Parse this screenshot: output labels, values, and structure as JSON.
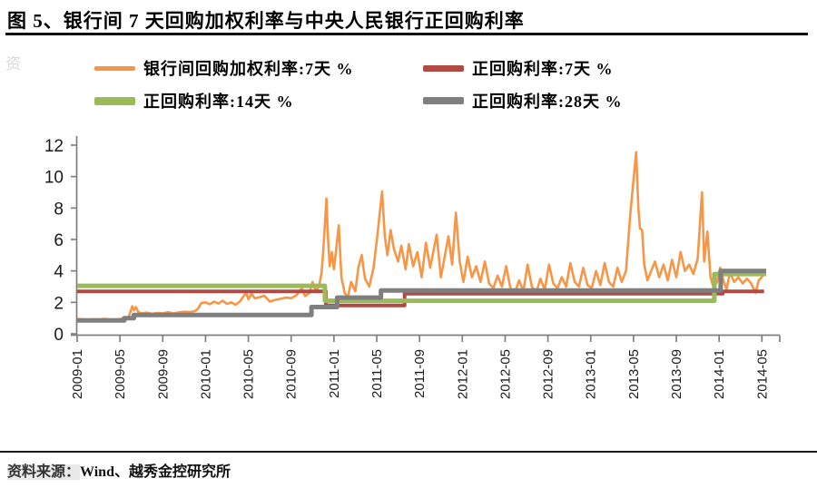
{
  "header": {
    "title": "图 5、银行间 7 天回购加权利率与中央人民银行正回购利率"
  },
  "watermark": {
    "char": "资"
  },
  "footer": {
    "label": "资料来源：",
    "text": "Wind、越秀金控研究所"
  },
  "chart_data": {
    "type": "line",
    "title": "",
    "xlabel": "",
    "ylabel": "",
    "grid": false,
    "legend_position": "top",
    "ylim": [
      0,
      12
    ],
    "yticks": [
      0,
      2,
      4,
      6,
      8,
      10,
      12
    ],
    "x_unit": "months since 2009-01",
    "xlim": [
      0,
      65.5
    ],
    "xticks": [
      {
        "m": 0,
        "label": "2009-01"
      },
      {
        "m": 4,
        "label": "2009-05"
      },
      {
        "m": 8,
        "label": "2009-09"
      },
      {
        "m": 12,
        "label": "2010-01"
      },
      {
        "m": 16,
        "label": "2010-05"
      },
      {
        "m": 20,
        "label": "2010-09"
      },
      {
        "m": 24,
        "label": "2011-01"
      },
      {
        "m": 28,
        "label": "2011-05"
      },
      {
        "m": 32,
        "label": "2011-09"
      },
      {
        "m": 36,
        "label": "2012-01"
      },
      {
        "m": 40,
        "label": "2012-05"
      },
      {
        "m": 44,
        "label": "2012-09"
      },
      {
        "m": 48,
        "label": "2013-01"
      },
      {
        "m": 52,
        "label": "2013-05"
      },
      {
        "m": 56,
        "label": "2013-09"
      },
      {
        "m": 60,
        "label": "2014-01"
      },
      {
        "m": 64,
        "label": "2014-05"
      }
    ],
    "series": [
      {
        "name": "银行间回购加权利率:7天  %",
        "color": "#F79646",
        "width": 2.6,
        "swatch_h": 5,
        "points": [
          [
            0,
            0.95
          ],
          [
            0.5,
            0.92
          ],
          [
            1,
            0.9
          ],
          [
            1.5,
            0.93
          ],
          [
            2,
            0.91
          ],
          [
            2.5,
            0.95
          ],
          [
            3,
            0.92
          ],
          [
            3.5,
            0.9
          ],
          [
            4,
            0.94
          ],
          [
            4.4,
            0.98
          ],
          [
            4.8,
            1.05
          ],
          [
            5,
            1.45
          ],
          [
            5.15,
            1.75
          ],
          [
            5.3,
            1.5
          ],
          [
            5.5,
            1.7
          ],
          [
            5.7,
            1.4
          ],
          [
            6,
            1.3
          ],
          [
            6.5,
            1.35
          ],
          [
            7,
            1.27
          ],
          [
            7.5,
            1.33
          ],
          [
            8,
            1.3
          ],
          [
            8.5,
            1.38
          ],
          [
            9,
            1.3
          ],
          [
            9.5,
            1.36
          ],
          [
            10,
            1.4
          ],
          [
            10.5,
            1.38
          ],
          [
            11,
            1.44
          ],
          [
            11.3,
            1.6
          ],
          [
            11.6,
            1.95
          ],
          [
            12,
            2.0
          ],
          [
            12.4,
            1.88
          ],
          [
            12.8,
            2.05
          ],
          [
            13.2,
            1.92
          ],
          [
            13.6,
            2.1
          ],
          [
            14,
            1.9
          ],
          [
            14.4,
            2.0
          ],
          [
            14.8,
            1.85
          ],
          [
            15.2,
            2.05
          ],
          [
            15.5,
            2.35
          ],
          [
            15.8,
            2.6
          ],
          [
            16,
            2.2
          ],
          [
            16.3,
            2.55
          ],
          [
            16.6,
            2.25
          ],
          [
            17,
            2.32
          ],
          [
            17.5,
            2.42
          ],
          [
            18,
            2.05
          ],
          [
            18.5,
            2.15
          ],
          [
            19,
            2.22
          ],
          [
            19.5,
            2.3
          ],
          [
            20,
            2.26
          ],
          [
            20.5,
            2.45
          ],
          [
            21,
            2.9
          ],
          [
            21.3,
            2.4
          ],
          [
            21.7,
            2.6
          ],
          [
            22,
            3.3
          ],
          [
            22.3,
            2.7
          ],
          [
            22.6,
            3.0
          ],
          [
            22.85,
            3.9
          ],
          [
            23.05,
            5.8
          ],
          [
            23.3,
            8.6
          ],
          [
            23.45,
            6.0
          ],
          [
            23.6,
            4.3
          ],
          [
            23.8,
            5.2
          ],
          [
            24,
            4.1
          ],
          [
            24.2,
            5.3
          ],
          [
            24.45,
            6.9
          ],
          [
            24.7,
            3.6
          ],
          [
            25,
            2.6
          ],
          [
            25.3,
            2.3
          ],
          [
            25.6,
            3.3
          ],
          [
            26,
            2.7
          ],
          [
            26.3,
            4.3
          ],
          [
            26.6,
            5.0
          ],
          [
            26.9,
            3.5
          ],
          [
            27.3,
            3.0
          ],
          [
            27.7,
            4.2
          ],
          [
            28.05,
            6.2
          ],
          [
            28.25,
            7.5
          ],
          [
            28.5,
            9.05
          ],
          [
            28.75,
            6.2
          ],
          [
            29,
            5.0
          ],
          [
            29.3,
            6.6
          ],
          [
            29.6,
            5.4
          ],
          [
            30,
            4.6
          ],
          [
            30.3,
            5.6
          ],
          [
            30.7,
            4.1
          ],
          [
            31,
            5.7
          ],
          [
            31.4,
            4.3
          ],
          [
            31.8,
            5.2
          ],
          [
            32.2,
            3.6
          ],
          [
            32.6,
            5.8
          ],
          [
            33,
            4.2
          ],
          [
            33.6,
            6.3
          ],
          [
            34,
            3.6
          ],
          [
            34.7,
            6.2
          ],
          [
            35.05,
            4.4
          ],
          [
            35.4,
            7.7
          ],
          [
            35.75,
            4.6
          ],
          [
            36.1,
            3.3
          ],
          [
            36.5,
            4.9
          ],
          [
            36.9,
            3.6
          ],
          [
            37.3,
            4.3
          ],
          [
            37.7,
            3.3
          ],
          [
            38.1,
            4.6
          ],
          [
            38.5,
            3.2
          ],
          [
            38.9,
            2.9
          ],
          [
            39.3,
            3.7
          ],
          [
            39.7,
            3.0
          ],
          [
            40.1,
            4.3
          ],
          [
            40.5,
            2.9
          ],
          [
            40.9,
            2.6
          ],
          [
            41.3,
            3.4
          ],
          [
            41.7,
            2.7
          ],
          [
            42.1,
            4.4
          ],
          [
            42.5,
            3.0
          ],
          [
            42.9,
            2.6
          ],
          [
            43.3,
            3.5
          ],
          [
            43.7,
            2.8
          ],
          [
            44.1,
            4.4
          ],
          [
            44.5,
            3.2
          ],
          [
            44.9,
            2.9
          ],
          [
            45.3,
            3.6
          ],
          [
            45.7,
            3.0
          ],
          [
            46.1,
            4.5
          ],
          [
            46.5,
            3.3
          ],
          [
            46.9,
            3.0
          ],
          [
            47.3,
            4.2
          ],
          [
            47.7,
            3.1
          ],
          [
            48.1,
            2.9
          ],
          [
            48.5,
            4.0
          ],
          [
            48.9,
            3.1
          ],
          [
            49.3,
            4.5
          ],
          [
            49.7,
            3.3
          ],
          [
            50.1,
            3.0
          ],
          [
            50.5,
            4.2
          ],
          [
            50.9,
            3.3
          ],
          [
            51.3,
            4.0
          ],
          [
            51.7,
            7.6
          ],
          [
            52,
            9.8
          ],
          [
            52.25,
            11.55
          ],
          [
            52.45,
            8.0
          ],
          [
            52.6,
            6.7
          ],
          [
            52.8,
            6.6
          ],
          [
            53,
            4.4
          ],
          [
            53.3,
            3.4
          ],
          [
            53.6,
            3.9
          ],
          [
            54,
            4.6
          ],
          [
            54.4,
            3.6
          ],
          [
            54.8,
            4.4
          ],
          [
            55.2,
            3.4
          ],
          [
            55.6,
            4.7
          ],
          [
            56,
            3.6
          ],
          [
            56.4,
            5.2
          ],
          [
            56.8,
            4.0
          ],
          [
            57.2,
            4.4
          ],
          [
            57.6,
            3.8
          ],
          [
            58,
            4.8
          ],
          [
            58.4,
            9.0
          ],
          [
            58.6,
            4.6
          ],
          [
            58.9,
            6.5
          ],
          [
            59.2,
            3.6
          ],
          [
            59.5,
            2.9
          ],
          [
            59.8,
            3.3
          ],
          [
            60.1,
            4.2
          ],
          [
            60.4,
            3.4
          ],
          [
            60.7,
            2.8
          ],
          [
            61,
            3.9
          ],
          [
            61.4,
            3.3
          ],
          [
            61.8,
            3.6
          ],
          [
            62.2,
            3.2
          ],
          [
            62.6,
            3.5
          ],
          [
            63,
            3.2
          ],
          [
            63.4,
            2.6
          ],
          [
            63.7,
            3.4
          ],
          [
            64,
            3.6
          ],
          [
            64.3,
            4.1
          ]
        ]
      },
      {
        "name": "正回购利率:7天  %",
        "color": "#B04A42",
        "width": 4,
        "swatch_h": 7,
        "points": [
          [
            0,
            2.7
          ],
          [
            23.25,
            2.7
          ],
          [
            23.25,
            1.8
          ],
          [
            30.6,
            1.8
          ],
          [
            30.6,
            2.55
          ],
          [
            60.35,
            2.55
          ],
          [
            60.35,
            2.7
          ],
          [
            64.2,
            2.7
          ]
        ]
      },
      {
        "name": "正回购利率:14天  %",
        "color": "#9BBB59",
        "width": 5,
        "swatch_h": 9,
        "points": [
          [
            0,
            3.05
          ],
          [
            23.15,
            3.05
          ],
          [
            23.15,
            2.1
          ],
          [
            59.55,
            2.1
          ],
          [
            59.55,
            3.8
          ],
          [
            64.4,
            3.8
          ]
        ]
      },
      {
        "name": "正回购利率:28天   %",
        "color": "#7F7F7F",
        "width": 5,
        "swatch_h": 8,
        "points": [
          [
            0,
            0.85
          ],
          [
            4.4,
            0.85
          ],
          [
            4.4,
            1.0
          ],
          [
            5.3,
            1.0
          ],
          [
            5.3,
            1.2
          ],
          [
            21.9,
            1.2
          ],
          [
            21.9,
            1.7
          ],
          [
            24.3,
            1.7
          ],
          [
            24.3,
            2.3
          ],
          [
            28.4,
            2.3
          ],
          [
            28.4,
            2.75
          ],
          [
            60.15,
            2.75
          ],
          [
            60.15,
            4.0
          ],
          [
            64.4,
            4.0
          ]
        ]
      }
    ]
  }
}
